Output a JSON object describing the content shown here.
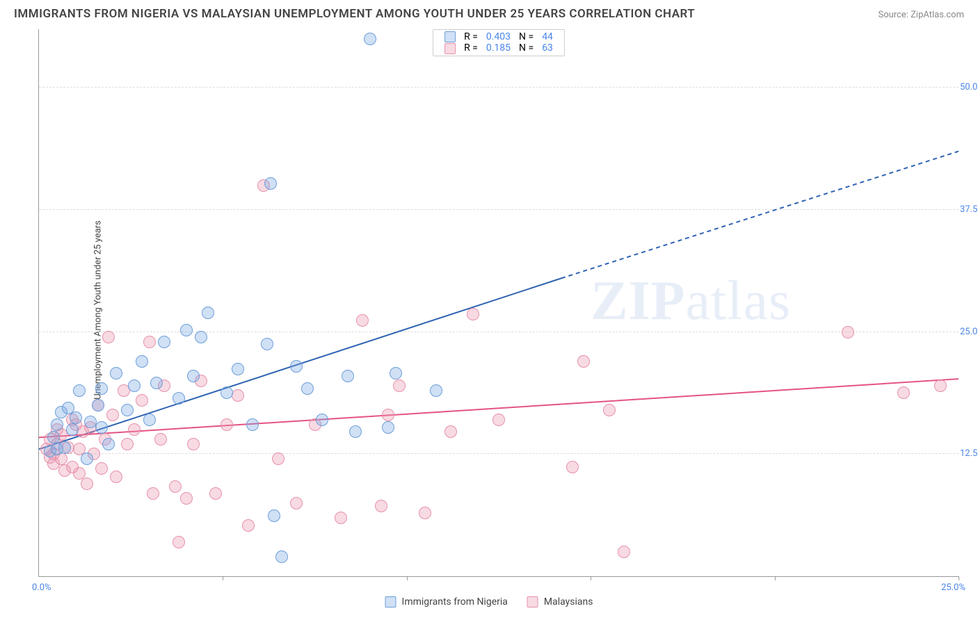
{
  "title": "IMMIGRANTS FROM NIGERIA VS MALAYSIAN UNEMPLOYMENT AMONG YOUTH UNDER 25 YEARS CORRELATION CHART",
  "source": "Source: ZipAtlas.com",
  "ylabel": "Unemployment Among Youth under 25 years",
  "watermark_text": "ZIPatlas",
  "chart": {
    "type": "scatter",
    "xlim": [
      0,
      25
    ],
    "ylim": [
      0,
      56
    ],
    "x_origin_label": "0.0%",
    "x_max_label": "25.0%",
    "y_ticks": [
      12.5,
      25.0,
      37.5,
      50.0
    ],
    "y_tick_labels": [
      "12.5%",
      "25.0%",
      "37.5%",
      "50.0%"
    ],
    "x_tick_positions": [
      0,
      5,
      10,
      15,
      20,
      25
    ],
    "grid_color": "#dddddd",
    "axis_color": "#999999",
    "tick_label_color": "#4a86e8",
    "background_color": "#ffffff"
  },
  "series": [
    {
      "name": "Immigrants from Nigeria",
      "label": "Immigrants from Nigeria",
      "fill": "rgba(120,165,225,0.35)",
      "stroke": "#6b9ed9",
      "line_color": "#2e63b2",
      "line_width": 2,
      "marker_radius": 9,
      "R_label": "R =",
      "R": "0.403",
      "N_label": "N =",
      "N": "44",
      "trend": {
        "x1": 0,
        "y1": 13.0,
        "x2_solid": 14.2,
        "y2_solid": 30.5,
        "x2_dash": 25,
        "y2_dash": 43.5
      },
      "points": [
        [
          0.3,
          12.8
        ],
        [
          0.4,
          14.2
        ],
        [
          0.5,
          13.0
        ],
        [
          0.5,
          15.5
        ],
        [
          0.6,
          16.8
        ],
        [
          0.7,
          13.2
        ],
        [
          0.8,
          17.2
        ],
        [
          0.9,
          15.0
        ],
        [
          1.0,
          16.2
        ],
        [
          1.1,
          19.0
        ],
        [
          1.3,
          12.0
        ],
        [
          1.4,
          15.8
        ],
        [
          1.6,
          17.5
        ],
        [
          1.7,
          19.2
        ],
        [
          1.7,
          15.2
        ],
        [
          1.9,
          13.5
        ],
        [
          2.1,
          20.8
        ],
        [
          2.4,
          17.0
        ],
        [
          2.6,
          19.5
        ],
        [
          2.8,
          22.0
        ],
        [
          3.0,
          16.0
        ],
        [
          3.2,
          19.8
        ],
        [
          3.4,
          24.0
        ],
        [
          3.8,
          18.2
        ],
        [
          4.0,
          25.2
        ],
        [
          4.2,
          20.5
        ],
        [
          4.4,
          24.5
        ],
        [
          4.6,
          27.0
        ],
        [
          5.1,
          18.8
        ],
        [
          5.4,
          21.2
        ],
        [
          5.8,
          15.5
        ],
        [
          6.2,
          23.8
        ],
        [
          6.3,
          40.2
        ],
        [
          6.4,
          6.2
        ],
        [
          6.6,
          2.0
        ],
        [
          7.0,
          21.5
        ],
        [
          7.3,
          19.2
        ],
        [
          7.7,
          16.0
        ],
        [
          8.4,
          20.5
        ],
        [
          8.6,
          14.8
        ],
        [
          9.0,
          55.0
        ],
        [
          9.5,
          15.2
        ],
        [
          9.7,
          20.8
        ],
        [
          10.8,
          19.0
        ]
      ]
    },
    {
      "name": "Malaysians",
      "label": "Malaysians",
      "fill": "rgba(235,150,175,0.35)",
      "stroke": "#e691aa",
      "line_color": "#e55384",
      "line_width": 2,
      "marker_radius": 9,
      "R_label": "R =",
      "R": "0.185",
      "N_label": "N =",
      "N": "63",
      "trend": {
        "x1": 0,
        "y1": 14.2,
        "x2_solid": 25,
        "y2_solid": 20.2,
        "x2_dash": 25,
        "y2_dash": 20.2
      },
      "points": [
        [
          0.2,
          13.0
        ],
        [
          0.3,
          12.2
        ],
        [
          0.3,
          14.0
        ],
        [
          0.4,
          12.5
        ],
        [
          0.4,
          11.5
        ],
        [
          0.5,
          13.5
        ],
        [
          0.5,
          15.0
        ],
        [
          0.6,
          12.0
        ],
        [
          0.6,
          14.5
        ],
        [
          0.7,
          10.8
        ],
        [
          0.8,
          13.2
        ],
        [
          0.9,
          11.2
        ],
        [
          0.9,
          16.0
        ],
        [
          1.0,
          15.5
        ],
        [
          1.1,
          13.0
        ],
        [
          1.1,
          10.5
        ],
        [
          1.2,
          14.8
        ],
        [
          1.3,
          9.5
        ],
        [
          1.4,
          15.2
        ],
        [
          1.5,
          12.5
        ],
        [
          1.6,
          17.5
        ],
        [
          1.7,
          11.0
        ],
        [
          1.8,
          14.0
        ],
        [
          1.9,
          24.5
        ],
        [
          2.0,
          16.5
        ],
        [
          2.1,
          10.2
        ],
        [
          2.3,
          19.0
        ],
        [
          2.4,
          13.5
        ],
        [
          2.6,
          15.0
        ],
        [
          2.8,
          18.0
        ],
        [
          3.0,
          24.0
        ],
        [
          3.1,
          8.5
        ],
        [
          3.3,
          14.0
        ],
        [
          3.4,
          19.5
        ],
        [
          3.7,
          9.2
        ],
        [
          3.8,
          3.5
        ],
        [
          4.0,
          8.0
        ],
        [
          4.2,
          13.5
        ],
        [
          4.4,
          20.0
        ],
        [
          4.8,
          8.5
        ],
        [
          5.1,
          15.5
        ],
        [
          5.4,
          18.5
        ],
        [
          5.7,
          5.2
        ],
        [
          6.1,
          40.0
        ],
        [
          6.5,
          12.0
        ],
        [
          7.0,
          7.5
        ],
        [
          7.5,
          15.5
        ],
        [
          8.2,
          6.0
        ],
        [
          8.8,
          26.2
        ],
        [
          9.3,
          7.2
        ],
        [
          9.5,
          16.5
        ],
        [
          9.8,
          19.5
        ],
        [
          10.5,
          6.5
        ],
        [
          11.2,
          14.8
        ],
        [
          11.8,
          26.8
        ],
        [
          12.5,
          16.0
        ],
        [
          14.5,
          11.2
        ],
        [
          14.8,
          22.0
        ],
        [
          15.5,
          17.0
        ],
        [
          15.9,
          2.5
        ],
        [
          22.0,
          25.0
        ],
        [
          23.5,
          18.8
        ],
        [
          24.5,
          19.5
        ]
      ]
    }
  ],
  "legend_top": {
    "col_R": "R =",
    "col_N": "N ="
  },
  "legend_bottom": {}
}
